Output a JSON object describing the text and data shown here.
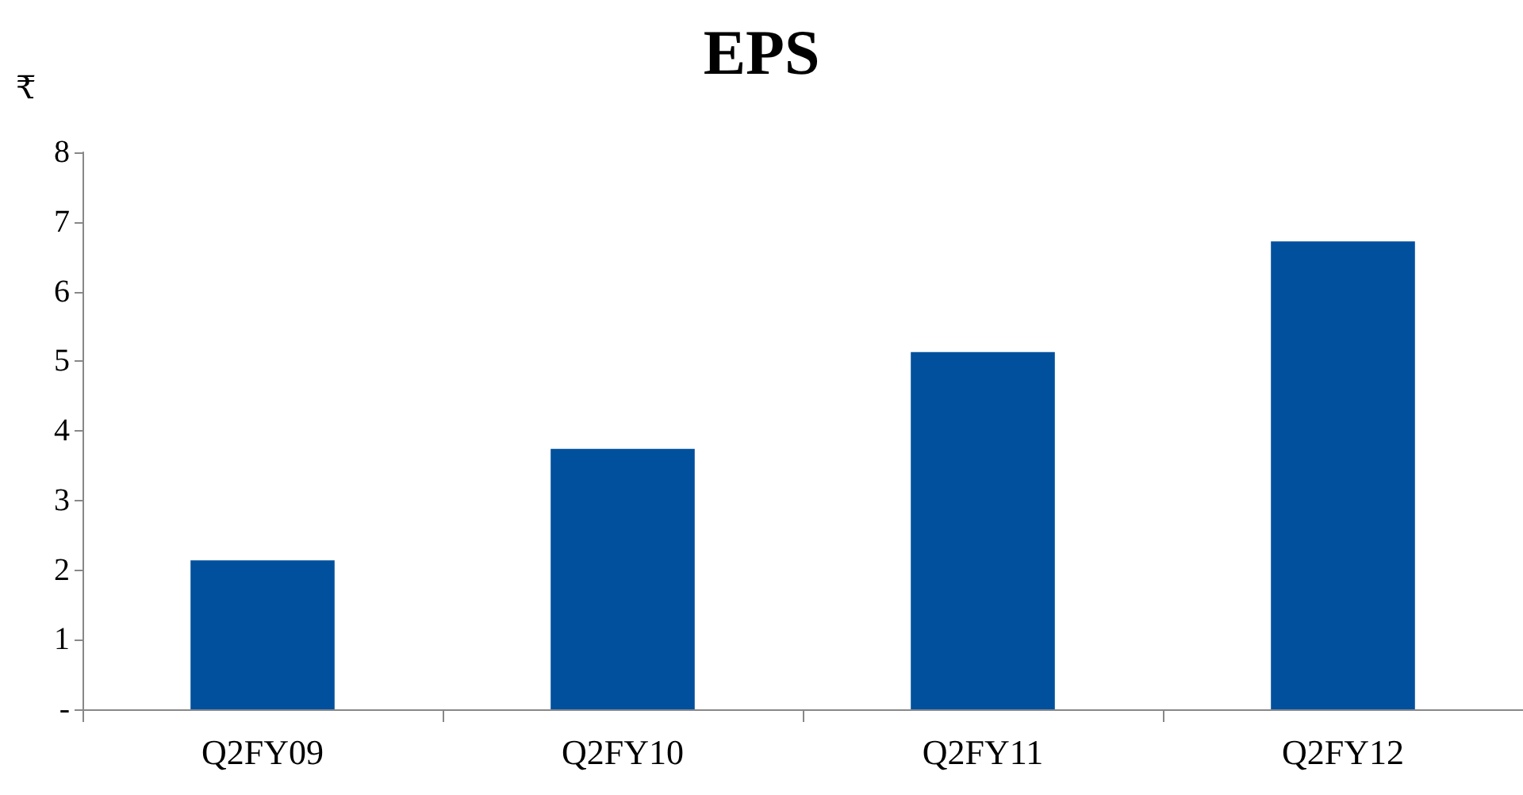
{
  "chart_data": {
    "type": "bar",
    "title": "EPS",
    "ylabel": "₹",
    "categories": [
      "Q2FY09",
      "Q2FY10",
      "Q2FY11",
      "Q2FY12"
    ],
    "values": [
      2.14,
      3.74,
      5.13,
      6.72
    ],
    "color": "#00509e",
    "ylim": [
      0,
      8
    ],
    "yticks": [
      {
        "value": 0,
        "label": "-"
      },
      1,
      2,
      3,
      4,
      5,
      6,
      7,
      8
    ],
    "grid": false
  }
}
